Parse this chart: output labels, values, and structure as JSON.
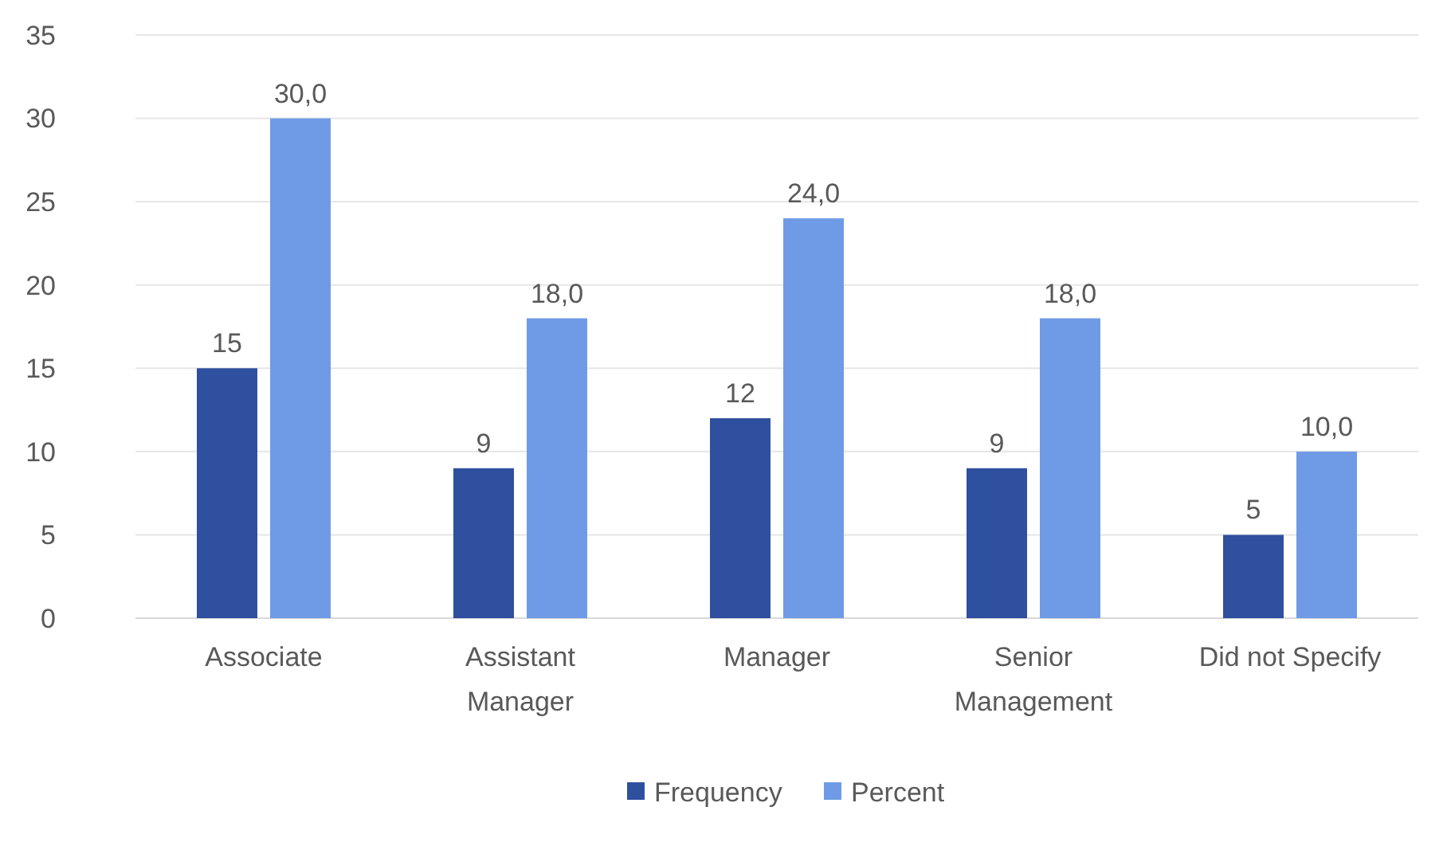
{
  "chart_data": {
    "type": "bar",
    "categories": [
      "Associate",
      "Assistant Manager",
      "Manager",
      "Senior Management",
      "Did not Specify"
    ],
    "series": [
      {
        "name": "Frequency",
        "color": "#2f4f9f",
        "values": [
          15,
          9,
          12,
          9,
          5
        ],
        "value_labels": [
          "15",
          "9",
          "12",
          "9",
          "5"
        ]
      },
      {
        "name": "Percent",
        "color": "#6f9be6",
        "values": [
          30.0,
          18.0,
          24.0,
          18.0,
          10.0
        ],
        "value_labels": [
          "30,0",
          "18,0",
          "24,0",
          "18,0",
          "10,0"
        ]
      }
    ],
    "ylim": [
      0,
      35
    ],
    "yticks": [
      0,
      5,
      10,
      15,
      20,
      25,
      30,
      35
    ],
    "grid": "y",
    "legend": "bottom"
  }
}
